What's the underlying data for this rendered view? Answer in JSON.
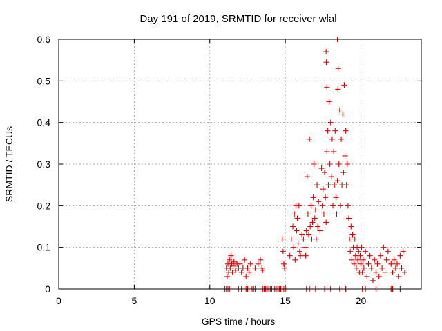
{
  "chart_data": {
    "type": "scatter",
    "title": "Day 191 of 2019, SRMTID for receiver wlal",
    "xlabel": "GPS time / hours",
    "ylabel": "SRMTID / TECUs",
    "xlim": [
      0,
      24
    ],
    "ylim": [
      0,
      0.6
    ],
    "xticks": [
      0,
      5,
      10,
      15,
      20
    ],
    "yticks": [
      0,
      0.1,
      0.2,
      0.3,
      0.4,
      0.5,
      0.6
    ],
    "ytick_labels": [
      "0",
      "0.1",
      "0.2",
      "0.3",
      "0.4",
      "0.5",
      "0.6"
    ],
    "grid": true,
    "marker": "+",
    "color": "#dd0000",
    "series": [
      {
        "name": "SRMTID",
        "points": [
          [
            11.1,
            0.05
          ],
          [
            11.15,
            0.03
          ],
          [
            11.2,
            0.06
          ],
          [
            11.25,
            0.04
          ],
          [
            11.3,
            0.07
          ],
          [
            11.35,
            0.05
          ],
          [
            11.4,
            0.08
          ],
          [
            11.45,
            0.06
          ],
          [
            11.5,
            0.04
          ],
          [
            11.55,
            0.055
          ],
          [
            11.6,
            0.065
          ],
          [
            11.7,
            0.045
          ],
          [
            11.8,
            0.06
          ],
          [
            11.9,
            0.05
          ],
          [
            12.0,
            0.06
          ],
          [
            12.1,
            0.04
          ],
          [
            12.2,
            0.05
          ],
          [
            12.3,
            0.07
          ],
          [
            12.4,
            0.03
          ],
          [
            12.5,
            0.05
          ],
          [
            12.6,
            0.04
          ],
          [
            12.7,
            0.06
          ],
          [
            13.0,
            0.05
          ],
          [
            13.2,
            0.06
          ],
          [
            13.35,
            0.07
          ],
          [
            13.45,
            0.05
          ],
          [
            13.5,
            0.045
          ],
          [
            14.8,
            0.12
          ],
          [
            14.85,
            0.09
          ],
          [
            14.9,
            0.06
          ],
          [
            14.95,
            0.05
          ],
          [
            15.3,
            0.08
          ],
          [
            15.4,
            0.12
          ],
          [
            15.5,
            0.15
          ],
          [
            15.55,
            0.1
          ],
          [
            15.6,
            0.18
          ],
          [
            15.65,
            0.07
          ],
          [
            15.7,
            0.2
          ],
          [
            15.75,
            0.14
          ],
          [
            15.8,
            0.17
          ],
          [
            15.85,
            0.11
          ],
          [
            15.9,
            0.2
          ],
          [
            15.95,
            0.09
          ],
          [
            16.0,
            0.08
          ],
          [
            16.1,
            0.13
          ],
          [
            16.2,
            0.12
          ],
          [
            16.3,
            0.1
          ],
          [
            16.35,
            0.08
          ],
          [
            16.4,
            0.14
          ],
          [
            16.45,
            0.27
          ],
          [
            16.5,
            0.18
          ],
          [
            16.55,
            0.13
          ],
          [
            16.6,
            0.36
          ],
          [
            16.65,
            0.15
          ],
          [
            16.7,
            0.2
          ],
          [
            16.75,
            0.12
          ],
          [
            16.8,
            0.16
          ],
          [
            16.85,
            0.22
          ],
          [
            16.9,
            0.3
          ],
          [
            16.95,
            0.17
          ],
          [
            17.0,
            0.19
          ],
          [
            17.05,
            0.12
          ],
          [
            17.1,
            0.25
          ],
          [
            17.15,
            0.15
          ],
          [
            17.2,
            0.21
          ],
          [
            17.3,
            0.14
          ],
          [
            17.4,
            0.29
          ],
          [
            17.45,
            0.2
          ],
          [
            17.5,
            0.24
          ],
          [
            17.55,
            0.18
          ],
          [
            17.6,
            0.28
          ],
          [
            17.65,
            0.22
          ],
          [
            17.7,
            0.16
          ],
          [
            17.75,
            0.33
          ],
          [
            17.8,
            0.38
          ],
          [
            17.85,
            0.25
          ],
          [
            17.9,
            0.45
          ],
          [
            17.95,
            0.3
          ],
          [
            18.0,
            0.4
          ],
          [
            18.05,
            0.27
          ],
          [
            18.1,
            0.36
          ],
          [
            18.15,
            0.2
          ],
          [
            18.2,
            0.33
          ],
          [
            18.25,
            0.25
          ],
          [
            18.3,
            0.38
          ],
          [
            18.35,
            0.22
          ],
          [
            18.4,
            0.18
          ],
          [
            18.45,
            0.26
          ],
          [
            18.5,
            0.53
          ],
          [
            18.55,
            0.3
          ],
          [
            18.6,
            0.43
          ],
          [
            18.65,
            0.2
          ],
          [
            18.7,
            0.36
          ],
          [
            18.75,
            0.25
          ],
          [
            18.8,
            0.42
          ],
          [
            18.85,
            0.28
          ],
          [
            18.9,
            0.49
          ],
          [
            18.95,
            0.32
          ],
          [
            19.0,
            0.38
          ],
          [
            19.05,
            0.25
          ],
          [
            19.1,
            0.3
          ],
          [
            17.7,
            0.57
          ],
          [
            17.72,
            0.545
          ],
          [
            17.75,
            0.485
          ],
          [
            18.45,
            0.6
          ],
          [
            18.48,
            0.48
          ],
          [
            19.15,
            0.2
          ],
          [
            19.2,
            0.17
          ],
          [
            19.25,
            0.12
          ],
          [
            19.3,
            0.09
          ],
          [
            19.35,
            0.15
          ],
          [
            19.4,
            0.07
          ],
          [
            19.45,
            0.13
          ],
          [
            19.5,
            0.1
          ],
          [
            19.55,
            0.06
          ],
          [
            19.6,
            0.12
          ],
          [
            19.65,
            0.08
          ],
          [
            19.7,
            0.05
          ],
          [
            19.75,
            0.1
          ],
          [
            19.8,
            0.07
          ],
          [
            19.85,
            0.09
          ],
          [
            19.9,
            0.04
          ],
          [
            19.95,
            0.08
          ],
          [
            20.0,
            0.06
          ],
          [
            20.05,
            0.1
          ],
          [
            20.1,
            0.04
          ],
          [
            20.15,
            0.07
          ],
          [
            20.2,
            0.05
          ],
          [
            20.3,
            0.09
          ],
          [
            20.4,
            0.03
          ],
          [
            20.5,
            0.06
          ],
          [
            20.6,
            0.08
          ],
          [
            20.7,
            0.05
          ],
          [
            20.8,
            0.02
          ],
          [
            20.9,
            0.07
          ],
          [
            21.0,
            0.04
          ],
          [
            21.1,
            0.06
          ],
          [
            21.2,
            0.03
          ],
          [
            21.3,
            0.08
          ],
          [
            21.4,
            0.05
          ],
          [
            21.5,
            0.1
          ],
          [
            21.6,
            0.04
          ],
          [
            21.7,
            0.07
          ],
          [
            21.8,
            0.09
          ],
          [
            22.0,
            0.06
          ],
          [
            22.1,
            0.04
          ],
          [
            22.2,
            0.07
          ],
          [
            22.3,
            0.05
          ],
          [
            22.4,
            0.06
          ],
          [
            22.5,
            0.03
          ],
          [
            22.6,
            0.08
          ],
          [
            22.7,
            0.05
          ],
          [
            22.8,
            0.09
          ],
          [
            22.9,
            0.04
          ]
        ]
      }
    ],
    "zero_markers_x": [
      11.0,
      11.1,
      11.2,
      11.3,
      11.9,
      12.0,
      12.1,
      12.4,
      12.5,
      12.8,
      12.9,
      13.0,
      13.5,
      13.6,
      13.7,
      13.8,
      13.9,
      14.0,
      14.1,
      14.2,
      14.3,
      14.4,
      14.5,
      14.6,
      14.7,
      14.9,
      15.0,
      15.1,
      16.4,
      16.6,
      17.0,
      17.6,
      18.0,
      18.6,
      19.0,
      20.1,
      20.3,
      21.0,
      22.0,
      22.1,
      22.6
    ]
  }
}
